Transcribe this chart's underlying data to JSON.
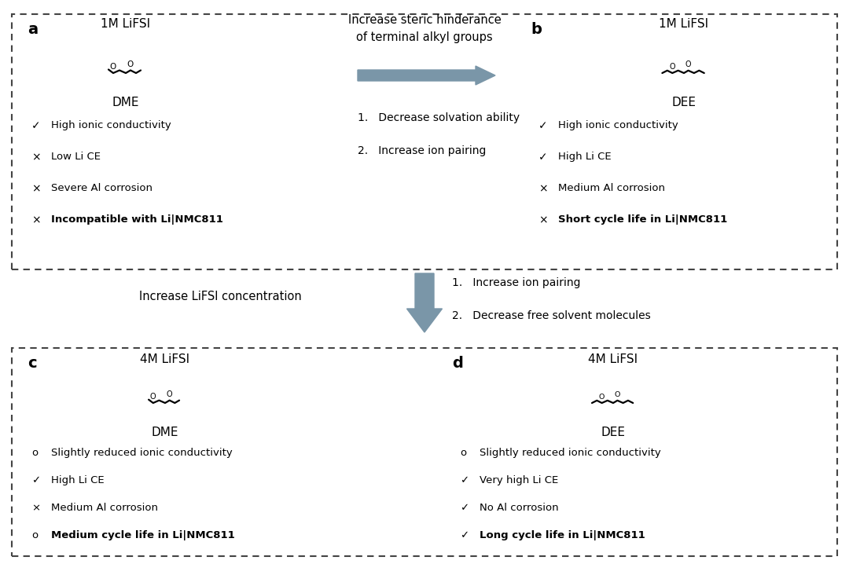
{
  "bg_color": "#ffffff",
  "box_color": "#444444",
  "arrow_color": "#7a96a8",
  "panel_a": {
    "label": "a",
    "concentration": "1M LiFSI",
    "molecule": "DME",
    "items": [
      {
        "symbol": "✓",
        "text": "High ionic conductivity",
        "bold": false
      },
      {
        "symbol": "×",
        "text": "Low Li CE",
        "bold": false
      },
      {
        "symbol": "×",
        "text": "Severe Al corrosion",
        "bold": false
      },
      {
        "symbol": "×",
        "text": "Incompatible with Li|NMC811",
        "bold": true
      }
    ]
  },
  "panel_b": {
    "label": "b",
    "concentration": "1M LiFSI",
    "molecule": "DEE",
    "items": [
      {
        "symbol": "✓",
        "text": "High ionic conductivity",
        "bold": false
      },
      {
        "symbol": "✓",
        "text": "High Li CE",
        "bold": false
      },
      {
        "symbol": "×",
        "text": "Medium Al corrosion",
        "bold": false
      },
      {
        "symbol": "×",
        "text": "Short cycle life in Li|NMC811",
        "bold": true
      }
    ]
  },
  "panel_c": {
    "label": "c",
    "concentration": "4M LiFSI",
    "molecule": "DME",
    "items": [
      {
        "symbol": "o",
        "text": "Slightly reduced ionic conductivity",
        "bold": false
      },
      {
        "symbol": "✓",
        "text": "High Li CE",
        "bold": false
      },
      {
        "symbol": "×",
        "text": "Medium Al corrosion",
        "bold": false
      },
      {
        "symbol": "o",
        "text": "Medium cycle life in Li|NMC811",
        "bold": true
      }
    ]
  },
  "panel_d": {
    "label": "d",
    "concentration": "4M LiFSI",
    "molecule": "DEE",
    "items": [
      {
        "symbol": "o",
        "text": "Slightly reduced ionic conductivity",
        "bold": false
      },
      {
        "symbol": "✓",
        "text": "Very high Li CE",
        "bold": false
      },
      {
        "symbol": "✓",
        "text": "No Al corrosion",
        "bold": false
      },
      {
        "symbol": "✓",
        "text": "Long cycle life in Li|NMC811",
        "bold": true
      }
    ]
  },
  "center_top_title": "Increase steric hinderance\nof terminal alkyl groups",
  "center_top_items": [
    "1.   Decrease solvation ability",
    "2.   Increase ion pairing"
  ],
  "center_mid_left": "Increase LiFSI concentration",
  "center_mid_right": [
    "1.   Increase ion pairing",
    "2.   Decrease free solvent molecules"
  ]
}
